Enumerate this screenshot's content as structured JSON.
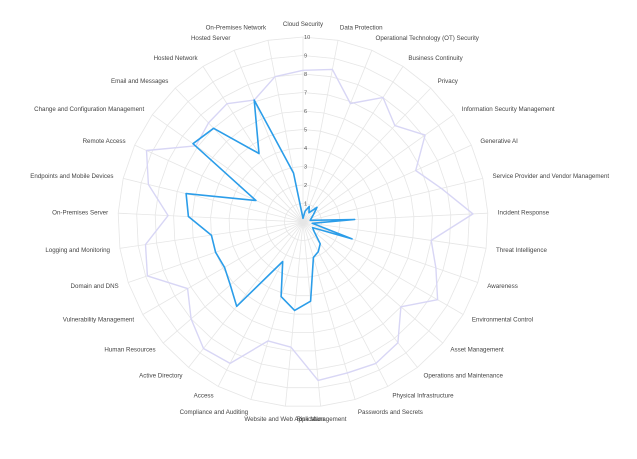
{
  "chart_data": {
    "type": "radar",
    "title": "",
    "categories": [
      "Cloud Security",
      "Data Protection",
      "Operational Technology (OT) Security",
      "Business Continuity",
      "Privacy",
      "Information Security Management",
      "Generative AI",
      "Service Provider and Vendor Management",
      "Incident Response",
      "Threat Intelligence",
      "Awareness",
      "Environmental Control",
      "Asset Management",
      "Operations and Maintenance",
      "Physical Infrastructure",
      "Passwords and Secrets",
      "Risk Management",
      "Website and Web Application",
      "Compliance and Auditing",
      "Access",
      "Active Directory",
      "Human Resources",
      "Vulnerability Management",
      "Domain and DNS",
      "Logging and Monitoring",
      "On-Premises Server",
      "Endpoints and Mobile Devices",
      "Remote Access",
      "Change and Configuration Management",
      "Email and Messages",
      "Hosted Network",
      "Hosted Server",
      "On-Premises Network"
    ],
    "rlim": [
      0,
      10
    ],
    "ticks": [
      "1",
      "2",
      "3",
      "4",
      "5",
      "6",
      "7",
      "8",
      "9",
      "10"
    ],
    "grid": true,
    "series": [
      {
        "color": "#2b9de9",
        "values": [
          0.2,
          0.6,
          0.9,
          0.6,
          1.1,
          0.7,
          0.5,
          0.4,
          2.8,
          0.5,
          2.8,
          0.6,
          0.8,
          1.5,
          1.8,
          2.0,
          4.3,
          4.8,
          4.2,
          2.4,
          5.8,
          5.2,
          4.9,
          5.0,
          5.0,
          6.2,
          6.5,
          2.8,
          7.3,
          7.0,
          4.4,
          7.1,
          2.7
        ]
      },
      {
        "color": "#d8d6f5",
        "values": [
          8.2,
          8.4,
          6.9,
          8.0,
          7.2,
          8.1,
          6.7,
          7.7,
          9.2,
          7.0,
          7.6,
          8.4,
          7.0,
          8.3,
          8.6,
          8.5,
          8.6,
          6.8,
          6.7,
          8.6,
          8.7,
          8.0,
          7.2,
          8.9,
          8.6,
          7.3,
          8.6,
          9.3,
          7.1,
          7.4,
          7.6,
          7.1,
          8.0
        ]
      }
    ]
  }
}
